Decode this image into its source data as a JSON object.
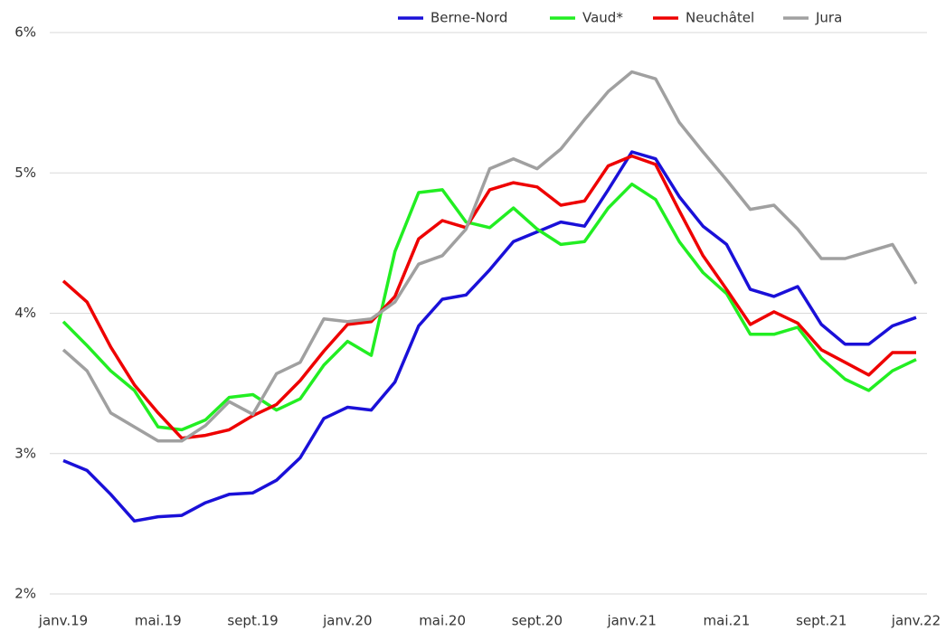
{
  "chart_data": {
    "type": "line",
    "categories": [
      "janv.19",
      null,
      null,
      null,
      "mai.19",
      null,
      null,
      null,
      "sept.19",
      null,
      null,
      null,
      "janv.20",
      null,
      null,
      null,
      "mai.20",
      null,
      null,
      null,
      "sept.20",
      null,
      null,
      null,
      "janv.21",
      null,
      null,
      null,
      "mai.21",
      null,
      null,
      null,
      "sept.21",
      null,
      null,
      null,
      "janv.22"
    ],
    "series": [
      {
        "name": "Berne-Nord",
        "color": "#1a10d8",
        "values": [
          2.95,
          2.88,
          2.71,
          2.52,
          2.55,
          2.56,
          2.65,
          2.71,
          2.72,
          2.81,
          2.97,
          3.25,
          3.33,
          3.31,
          3.51,
          3.91,
          4.1,
          4.13,
          4.31,
          4.51,
          4.58,
          4.65,
          4.62,
          4.88,
          5.15,
          5.1,
          4.83,
          4.62,
          4.49,
          4.17,
          4.12,
          4.19,
          3.92,
          3.78,
          3.78,
          3.91,
          3.97
        ]
      },
      {
        "name": "Vaud*",
        "color": "#22ee22",
        "values": [
          3.94,
          3.77,
          3.59,
          3.45,
          3.19,
          3.17,
          3.24,
          3.4,
          3.42,
          3.31,
          3.39,
          3.63,
          3.8,
          3.7,
          4.44,
          4.86,
          4.88,
          4.65,
          4.61,
          4.75,
          4.6,
          4.49,
          4.51,
          4.75,
          4.92,
          4.81,
          4.51,
          4.29,
          4.14,
          3.85,
          3.85,
          3.9,
          3.68,
          3.53,
          3.45,
          3.59,
          3.67
        ]
      },
      {
        "name": "Neuchâtel",
        "color": "#ee0000",
        "values": [
          4.23,
          4.08,
          3.76,
          3.49,
          3.29,
          3.11,
          3.13,
          3.17,
          3.27,
          3.35,
          3.52,
          3.73,
          3.92,
          3.94,
          4.12,
          4.53,
          4.66,
          4.61,
          4.88,
          4.93,
          4.9,
          4.77,
          4.8,
          5.05,
          5.12,
          5.06,
          4.73,
          4.41,
          4.17,
          3.92,
          4.01,
          3.93,
          3.74,
          3.65,
          3.56,
          3.72,
          3.72
        ]
      },
      {
        "name": "Jura",
        "color": "#a0a0a0",
        "values": [
          3.74,
          3.59,
          3.29,
          3.19,
          3.09,
          3.09,
          3.2,
          3.37,
          3.28,
          3.57,
          3.65,
          3.96,
          3.94,
          3.96,
          4.08,
          4.35,
          4.41,
          4.6,
          5.03,
          5.1,
          5.03,
          5.17,
          5.38,
          5.58,
          5.72,
          5.67,
          5.36,
          5.15,
          4.95,
          4.74,
          4.77,
          4.6,
          4.39,
          4.39,
          4.44,
          4.49,
          4.21
        ]
      }
    ],
    "ylim": [
      2,
      6
    ],
    "yticks": [
      {
        "value": 2,
        "label": "2%"
      },
      {
        "value": 3,
        "label": "3%"
      },
      {
        "value": 4,
        "label": "4%"
      },
      {
        "value": 5,
        "label": "5%"
      },
      {
        "value": 6,
        "label": "6%"
      }
    ],
    "grid": true,
    "legend": "top"
  }
}
